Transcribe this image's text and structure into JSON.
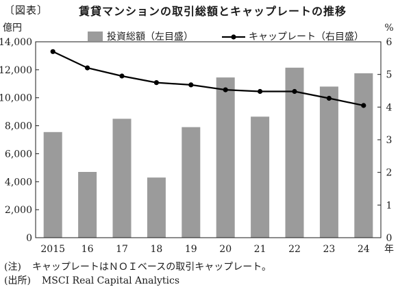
{
  "figure_label": "〔図表〕",
  "notes": [
    {
      "label": "(注)",
      "text": "キャップレートはＮＯＩベースの取引キャップレート。"
    },
    {
      "label": "(出所)",
      "text": "MSCI Real Capital Analytics"
    }
  ],
  "chart_data": {
    "type": "bar+line",
    "title": "賃貸マンションの取引総額とキャップレートの推移",
    "categories": [
      "2015",
      "16",
      "17",
      "18",
      "19",
      "20",
      "21",
      "22",
      "23",
      "24"
    ],
    "x_unit": "年",
    "y_left": {
      "unit": "億円",
      "min": 0,
      "max": 14000,
      "ticks": [
        "0",
        "2,000",
        "4,000",
        "6,000",
        "8,000",
        "10,000",
        "12,000",
        "14,000"
      ]
    },
    "y_right": {
      "unit": "%",
      "min": 0,
      "max": 6,
      "ticks": [
        "0",
        "1",
        "2",
        "3",
        "4",
        "5",
        "6"
      ]
    },
    "series": [
      {
        "name": "投資総額（左目盛）",
        "type": "bar",
        "axis": "left",
        "color": "#9b9b9b",
        "values": [
          7550,
          4700,
          8500,
          4300,
          7900,
          11450,
          8650,
          12150,
          10800,
          11750
        ]
      },
      {
        "name": "キャップレート（右目盛）",
        "type": "line",
        "axis": "right",
        "color": "#000000",
        "values": [
          5.7,
          5.2,
          4.95,
          4.75,
          4.68,
          4.53,
          4.48,
          4.48,
          4.27,
          4.05
        ]
      }
    ],
    "legend_position": "top-center",
    "grid": false
  }
}
